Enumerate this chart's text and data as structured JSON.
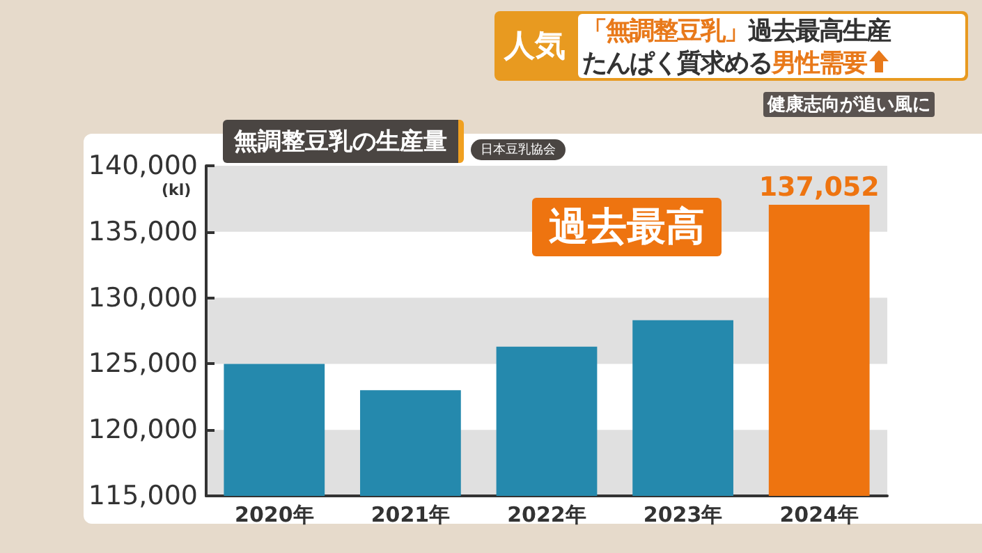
{
  "chart_data": {
    "type": "bar",
    "title": "無調整豆乳の生産量",
    "ylabel": "(kl)",
    "categories": [
      "2020年",
      "2021年",
      "2022年",
      "2023年",
      "2024年"
    ],
    "values": [
      125000,
      123000,
      126300,
      128300,
      137052
    ],
    "colors": [
      "#2589ad",
      "#2589ad",
      "#2589ad",
      "#2589ad",
      "#ee7410"
    ],
    "value_labels": [
      null,
      null,
      null,
      null,
      "137,052"
    ],
    "ylim": [
      115000,
      140000
    ],
    "yticks": [
      {
        "value": 115000,
        "label": "115,000"
      },
      {
        "value": 120000,
        "label": "120,000"
      },
      {
        "value": 125000,
        "label": "125,000"
      },
      {
        "value": 130000,
        "label": "130,000"
      },
      {
        "value": 135000,
        "label": "135,000"
      },
      {
        "value": 140000,
        "label": "140,000"
      }
    ],
    "bands": [
      {
        "axis": "y",
        "from": 115000,
        "to": 120000,
        "color": "#e0e0e0"
      },
      {
        "axis": "y",
        "from": 125000,
        "to": 130000,
        "color": "#e0e0e0"
      },
      {
        "axis": "y",
        "from": 135000,
        "to": 140000,
        "color": "#e0e0e0"
      }
    ],
    "annotations": [
      "人気",
      "「無調整豆乳」",
      "過去最高生産",
      "たんぱく質求める",
      "男性需要",
      "健康志向が追い風に",
      "日本豆乳協会",
      {
        "text": "過去最高",
        "x": "2024年",
        "y": 137052
      }
    ]
  }
}
